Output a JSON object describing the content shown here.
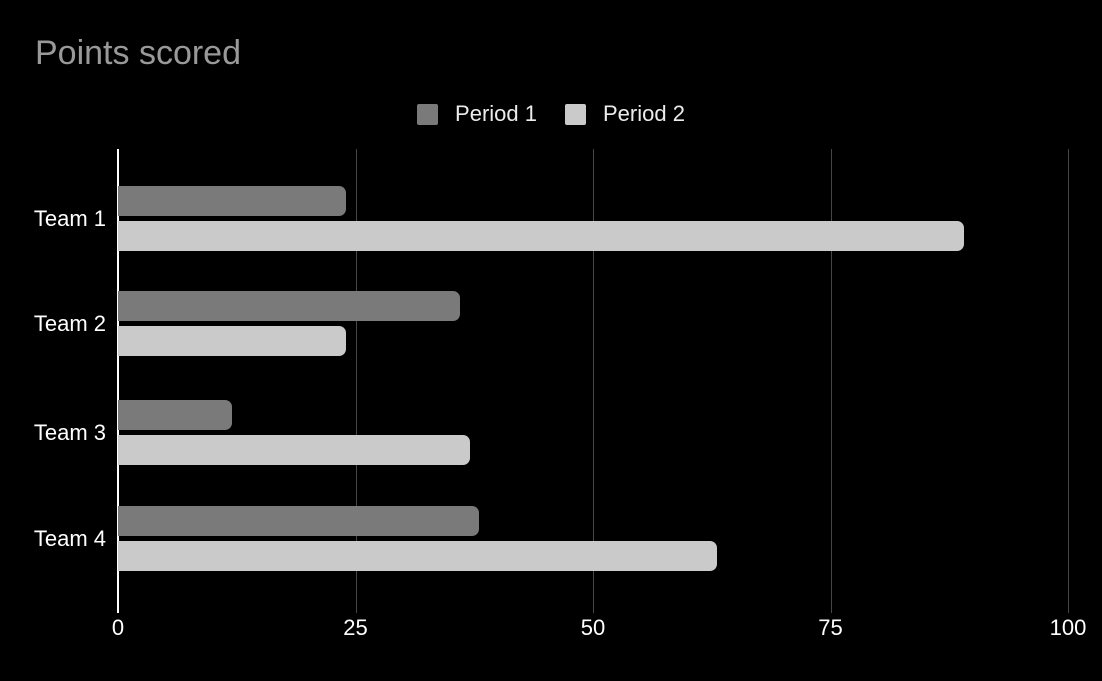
{
  "title": "Points scored",
  "colors": {
    "background": "#000000",
    "title_text": "#999999",
    "axis_text": "#ffffff",
    "legend_text": "#ececec",
    "gridline": "#464646",
    "baseline": "#ffffff",
    "period1": "#7a7a7a",
    "period2": "#cacaca"
  },
  "legend": {
    "items": [
      {
        "label": "Period 1",
        "color": "#7a7a7a"
      },
      {
        "label": "Period 2",
        "color": "#cacaca"
      }
    ]
  },
  "chart_data": {
    "type": "bar",
    "orientation": "horizontal",
    "title": "Points scored",
    "categories": [
      "Team 1",
      "Team 2",
      "Team 3",
      "Team 4"
    ],
    "series": [
      {
        "name": "Period 1",
        "color": "#7a7a7a",
        "values": [
          24,
          36,
          12,
          38
        ]
      },
      {
        "name": "Period 2",
        "color": "#cacaca",
        "values": [
          89,
          24,
          37,
          63
        ]
      }
    ],
    "xlabel": "",
    "ylabel": "",
    "xlim": [
      0,
      100
    ],
    "x_ticks": [
      0,
      25,
      50,
      75,
      100
    ],
    "grid": true,
    "legend_position": "top",
    "background": "black"
  }
}
